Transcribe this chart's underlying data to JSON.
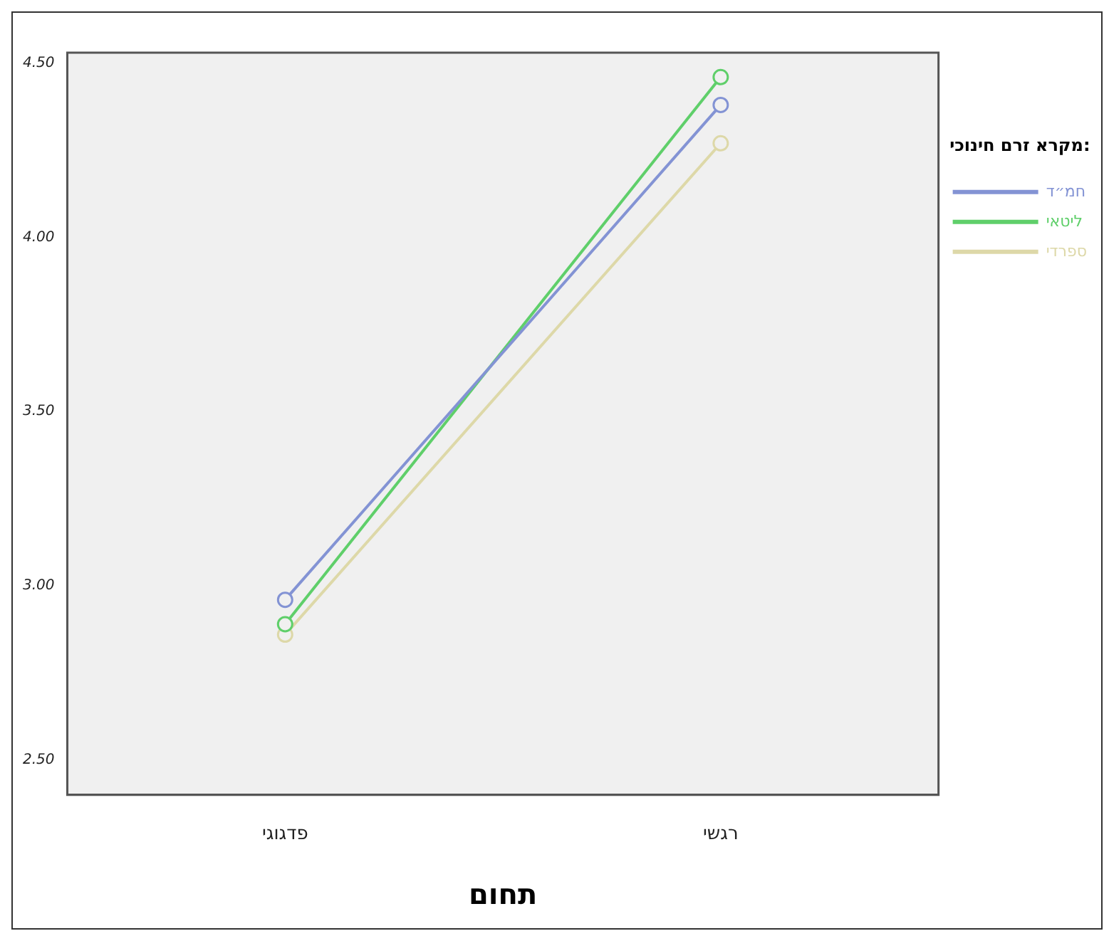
{
  "chart_data": {
    "type": "line",
    "xlabel": "תחום",
    "legend_title": "מקרא זרם חינוכי:",
    "categories": [
      "פדגוגי",
      "רגשי"
    ],
    "series": [
      {
        "name": "חמ״ד",
        "color": "#8393d4",
        "values": [
          2.96,
          4.38
        ]
      },
      {
        "name": "ליטאי",
        "color": "#5fcf6a",
        "values": [
          2.89,
          4.46
        ]
      },
      {
        "name": "ספרדי",
        "color": "#ddd8a8",
        "values": [
          2.86,
          4.27
        ]
      }
    ],
    "ylim": [
      2.4,
      4.53
    ],
    "yticks": [
      {
        "value": 2.5,
        "label": "2.50"
      },
      {
        "value": 3,
        "label": "3.00"
      },
      {
        "value": 3.5,
        "label": "3.50"
      },
      {
        "value": 4,
        "label": "4.00"
      },
      {
        "value": 4.5,
        "label": "4.50"
      }
    ],
    "grid": false,
    "legend": "right",
    "marker": "circle",
    "line_style": "solid"
  }
}
